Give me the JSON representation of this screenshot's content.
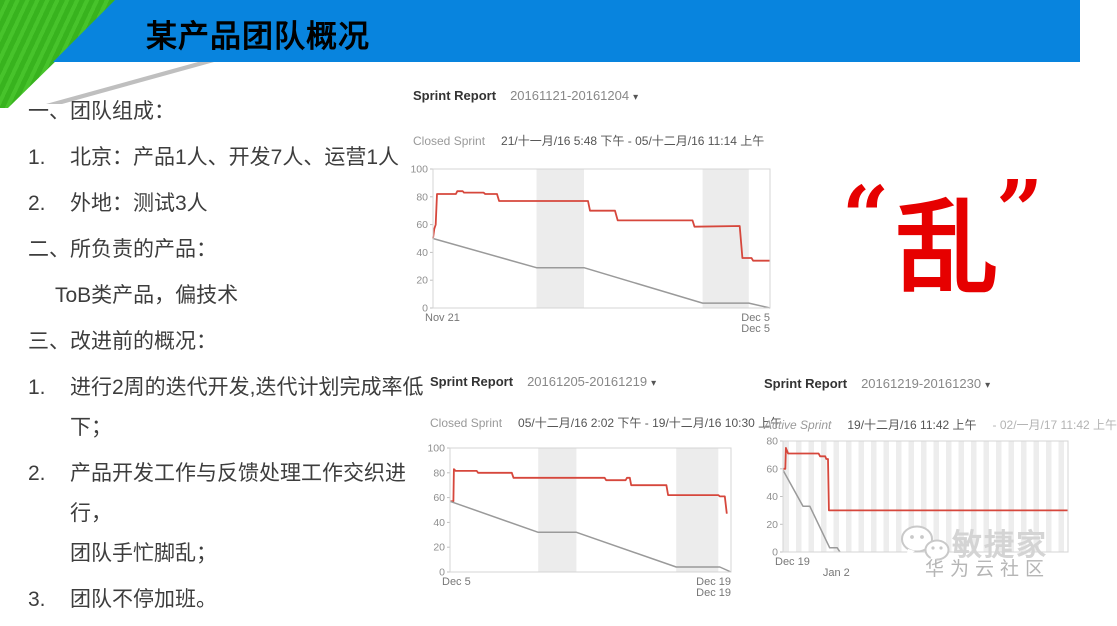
{
  "slide": {
    "title": "某产品团队概况"
  },
  "notes": [
    {
      "marker": "一、",
      "lines": [
        "团队组成："
      ]
    },
    {
      "marker": "1.",
      "lines": [
        "北京：产品1人、开发7人、运营1人"
      ]
    },
    {
      "marker": "2.",
      "lines": [
        "外地：测试3人"
      ]
    },
    {
      "marker": "二、",
      "lines": [
        "所负责的产品："
      ]
    },
    {
      "marker": "",
      "lines": [
        "ToB类产品，偏技术"
      ]
    },
    {
      "marker": "三、",
      "lines": [
        "改进前的概况："
      ]
    },
    {
      "marker": "1.",
      "lines": [
        "进行2周的迭代开发,迭代计划完成率低",
        "下；"
      ]
    },
    {
      "marker": "2.",
      "lines": [
        "产品开发工作与反馈处理工作交织进行，",
        "团队手忙脚乱；"
      ]
    },
    {
      "marker": "3.",
      "lines": [
        "团队不停加班。"
      ]
    }
  ],
  "icons": {
    "caret_down": "▾"
  },
  "annotation": {
    "open_quote": "“",
    "char": "乱",
    "close_quote": "”"
  },
  "watermark": {
    "brand": "敏捷家",
    "subtitle": "华为云社区"
  },
  "colors": {
    "header_blue": "#0884de",
    "header_green": "#38b31e",
    "header_gray": "#bfbfbf",
    "line_red": "#d6473c",
    "line_gray": "#9a9a9a",
    "band_gray": "#ececec",
    "annotation_red": "#e60000"
  },
  "chart_data": [
    {
      "type": "line",
      "title": "Sprint Report",
      "sprint_id": "20161121-20161204",
      "status_label": "Closed Sprint",
      "status_italic": false,
      "date_primary": "21/十一月/16 5:48 下午 - 05/十二月/16 11:14 上午",
      "date_secondary": "",
      "ylim": [
        0,
        100
      ],
      "yticks": [
        100,
        80,
        60,
        40,
        20,
        0
      ],
      "x_labels": [
        {
          "text": "Nov 21",
          "pos": 0,
          "anchor": "start",
          "row": 1
        },
        {
          "text": "Dec 5",
          "pos": 1,
          "anchor": "end",
          "row": 1
        },
        {
          "text": "Dec 5",
          "pos": 1,
          "anchor": "end",
          "row": 2
        }
      ],
      "bands": [
        [
          0.307,
          0.448
        ],
        [
          0.8,
          0.937
        ]
      ],
      "striped": false,
      "series": [
        {
          "name": "remaining",
          "color": "#d6473c",
          "points": [
            [
              0,
              50
            ],
            [
              0.004,
              57
            ],
            [
              0.008,
              60
            ],
            [
              0.012,
              82
            ],
            [
              0.068,
              82
            ],
            [
              0.072,
              84
            ],
            [
              0.088,
              84
            ],
            [
              0.092,
              83
            ],
            [
              0.15,
              83
            ],
            [
              0.155,
              82
            ],
            [
              0.19,
              82
            ],
            [
              0.196,
              77
            ],
            [
              0.46,
              77
            ],
            [
              0.466,
              70
            ],
            [
              0.54,
              70
            ],
            [
              0.548,
              63
            ],
            [
              0.77,
              63
            ],
            [
              0.776,
              58.5
            ],
            [
              0.91,
              59
            ],
            [
              0.918,
              36
            ],
            [
              0.945,
              36
            ],
            [
              0.95,
              34
            ],
            [
              1,
              34
            ]
          ]
        },
        {
          "name": "guideline",
          "color": "#9a9a9a",
          "points": [
            [
              0,
              50
            ],
            [
              0.307,
              29
            ],
            [
              0.448,
              29
            ],
            [
              0.8,
              3.5
            ],
            [
              0.937,
              3.5
            ],
            [
              1,
              0
            ]
          ]
        }
      ]
    },
    {
      "type": "line",
      "title": "Sprint Report",
      "sprint_id": "20161205-20161219",
      "status_label": "Closed Sprint",
      "status_italic": false,
      "date_primary": "05/十二月/16 2:02 下午 - 19/十二月/16 10:30 上午",
      "date_secondary": "",
      "ylim": [
        0,
        100
      ],
      "yticks": [
        100,
        80,
        60,
        40,
        20,
        0
      ],
      "x_labels": [
        {
          "text": "Dec 5",
          "pos": 0,
          "anchor": "start",
          "row": 1
        },
        {
          "text": "Dec 19",
          "pos": 1,
          "anchor": "end",
          "row": 1
        },
        {
          "text": "Dec 19",
          "pos": 1,
          "anchor": "end",
          "row": 2
        }
      ],
      "bands": [
        [
          0.314,
          0.45
        ],
        [
          0.805,
          0.955
        ]
      ],
      "striped": false,
      "series": [
        {
          "name": "remaining",
          "color": "#d6473c",
          "points": [
            [
              0,
              57
            ],
            [
              0.012,
              57
            ],
            [
              0.014,
              83
            ],
            [
              0.02,
              81.5
            ],
            [
              0.095,
              81.5
            ],
            [
              0.1,
              80
            ],
            [
              0.22,
              80
            ],
            [
              0.226,
              76
            ],
            [
              0.55,
              76
            ],
            [
              0.556,
              74
            ],
            [
              0.625,
              74
            ],
            [
              0.63,
              76
            ],
            [
              0.64,
              76
            ],
            [
              0.645,
              70
            ],
            [
              0.77,
              70
            ],
            [
              0.776,
              62
            ],
            [
              0.955,
              62
            ],
            [
              0.96,
              61
            ],
            [
              0.978,
              61
            ],
            [
              0.985,
              47
            ]
          ]
        },
        {
          "name": "guideline",
          "color": "#9a9a9a",
          "points": [
            [
              0,
              57
            ],
            [
              0.314,
              32
            ],
            [
              0.45,
              32
            ],
            [
              0.805,
              4
            ],
            [
              0.96,
              4
            ],
            [
              1,
              0
            ]
          ]
        }
      ]
    },
    {
      "type": "line",
      "title": "Sprint Report",
      "sprint_id": "20161219-20161230",
      "status_label": "Active Sprint",
      "status_italic": true,
      "date_primary": "19/十二月/16 11:42 上午",
      "date_secondary": "- 02/一月/17 11:42 上午",
      "ylim": [
        0,
        80
      ],
      "yticks": [
        80,
        60,
        40,
        20,
        0
      ],
      "x_labels": [
        {
          "text": "Dec 19",
          "pos": 0,
          "anchor": "start",
          "row": 1
        },
        {
          "text": "Jan 2",
          "pos": 0.187,
          "anchor": "middle",
          "row": 2
        }
      ],
      "bands": [],
      "striped": true,
      "series": [
        {
          "name": "remaining",
          "color": "#d6473c",
          "points": [
            [
              0,
              60
            ],
            [
              0.008,
              60
            ],
            [
              0.01,
              75
            ],
            [
              0.018,
              71
            ],
            [
              0.125,
              71
            ],
            [
              0.13,
              69
            ],
            [
              0.148,
              69
            ],
            [
              0.152,
              67
            ],
            [
              0.158,
              67
            ],
            [
              0.161,
              30
            ],
            [
              1,
              30
            ]
          ]
        },
        {
          "name": "guideline",
          "color": "#9a9a9a",
          "points": [
            [
              0,
              59
            ],
            [
              0.07,
              33
            ],
            [
              0.094,
              33
            ],
            [
              0.164,
              3
            ],
            [
              0.19,
              3
            ],
            [
              0.2,
              0
            ]
          ]
        }
      ]
    }
  ]
}
